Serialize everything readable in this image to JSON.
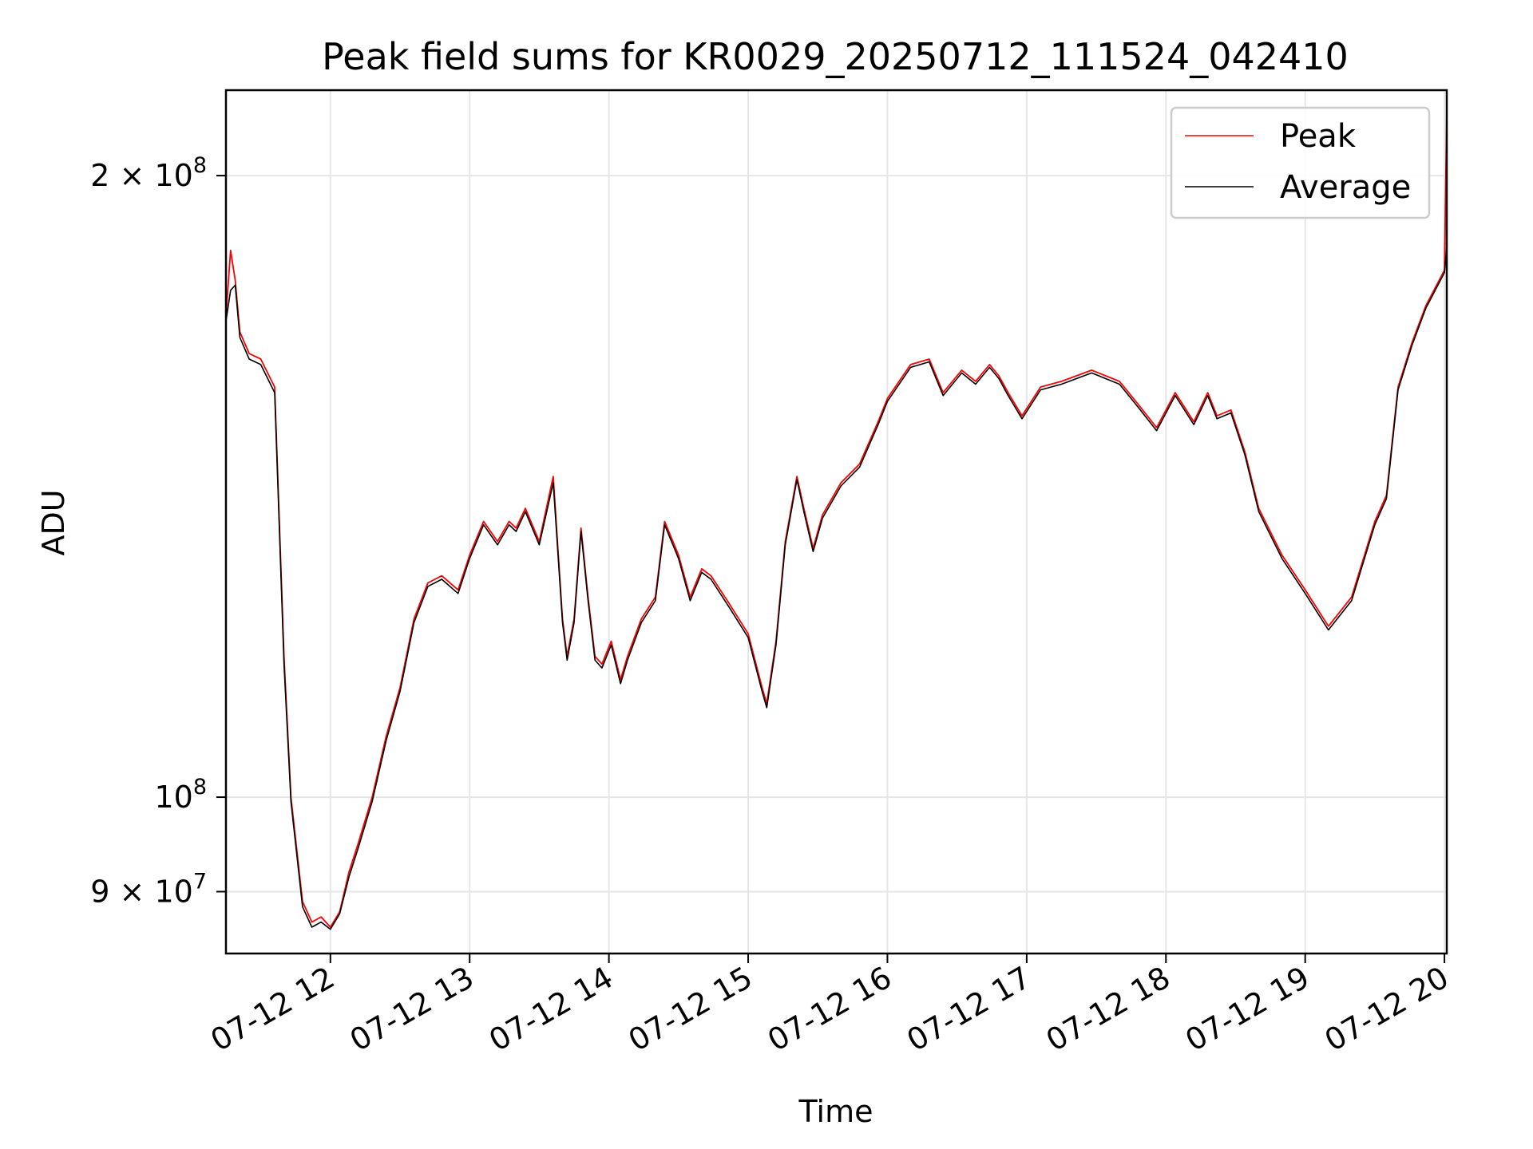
{
  "chart_data": {
    "type": "line",
    "title": "Peak field sums for KR0029_20250712_111524_042410",
    "xlabel": "Time",
    "ylabel": "ADU",
    "y_scale": "log",
    "ylim": [
      84000000,
      220000000
    ],
    "xlim": [
      "07-12 11:15",
      "07-12 20:01"
    ],
    "grid": true,
    "legend_position": "top-right",
    "x_ticks": [
      {
        "value": "07-12 12:00",
        "label": "07-12 12"
      },
      {
        "value": "07-12 13:00",
        "label": "07-12 13"
      },
      {
        "value": "07-12 14:00",
        "label": "07-12 14"
      },
      {
        "value": "07-12 15:00",
        "label": "07-12 15"
      },
      {
        "value": "07-12 16:00",
        "label": "07-12 16"
      },
      {
        "value": "07-12 17:00",
        "label": "07-12 17"
      },
      {
        "value": "07-12 18:00",
        "label": "07-12 18"
      },
      {
        "value": "07-12 19:00",
        "label": "07-12 19"
      },
      {
        "value": "07-12 20:00",
        "label": "07-12 20"
      }
    ],
    "y_ticks": [
      {
        "value": 90000000,
        "label_base": "9 × 10",
        "label_exp": "7"
      },
      {
        "value": 100000000,
        "label_base": "10",
        "label_exp": "8"
      },
      {
        "value": 200000000,
        "label_base": "2 × 10",
        "label_exp": "8"
      }
    ],
    "x_dates": [
      "07-12 11:15",
      "07-12 11:17",
      "07-12 11:19",
      "07-12 11:21",
      "07-12 11:25",
      "07-12 11:30",
      "07-12 11:36",
      "07-12 11:40",
      "07-12 11:43",
      "07-12 11:48",
      "07-12 11:52",
      "07-12 11:56",
      "07-12 12:00",
      "07-12 12:04",
      "07-12 12:08",
      "07-12 12:12",
      "07-12 12:18",
      "07-12 12:24",
      "07-12 12:30",
      "07-12 12:36",
      "07-12 12:42",
      "07-12 12:48",
      "07-12 12:55",
      "07-12 13:00",
      "07-12 13:06",
      "07-12 13:12",
      "07-12 13:17",
      "07-12 13:20",
      "07-12 13:24",
      "07-12 13:30",
      "07-12 13:36",
      "07-12 13:40",
      "07-12 13:42",
      "07-12 13:45",
      "07-12 13:48",
      "07-12 13:51",
      "07-12 13:54",
      "07-12 13:57",
      "07-12 14:01",
      "07-12 14:05",
      "07-12 14:08",
      "07-12 14:14",
      "07-12 14:20",
      "07-12 14:24",
      "07-12 14:30",
      "07-12 14:35",
      "07-12 14:40",
      "07-12 14:44",
      "07-12 14:52",
      "07-12 15:00",
      "07-12 15:06",
      "07-12 15:08",
      "07-12 15:12",
      "07-12 15:16",
      "07-12 15:21",
      "07-12 15:24",
      "07-12 15:28",
      "07-12 15:32",
      "07-12 15:40",
      "07-12 15:48",
      "07-12 15:56",
      "07-12 16:00",
      "07-12 16:10",
      "07-12 16:18",
      "07-12 16:24",
      "07-12 16:32",
      "07-12 16:38",
      "07-12 16:44",
      "07-12 16:48",
      "07-12 16:52",
      "07-12 16:58",
      "07-12 17:06",
      "07-12 17:15",
      "07-12 17:28",
      "07-12 17:40",
      "07-12 17:48",
      "07-12 17:56",
      "07-12 18:04",
      "07-12 18:12",
      "07-12 18:18",
      "07-12 18:22",
      "07-12 18:28",
      "07-12 18:34",
      "07-12 18:40",
      "07-12 18:50",
      "07-12 19:00",
      "07-12 19:10",
      "07-12 19:20",
      "07-12 19:30",
      "07-12 19:35",
      "07-12 19:40",
      "07-12 19:46",
      "07-12 19:52",
      "07-12 20:00",
      "07-12 20:01"
    ],
    "series": [
      {
        "name": "Peak",
        "color": "#ff0000",
        "values": [
          171000000,
          184000000,
          178000000,
          168000000,
          164000000,
          163000000,
          158000000,
          117000000,
          100000000,
          89000000,
          87000000,
          87500000,
          86500000,
          88000000,
          92000000,
          95000000,
          100000000,
          107000000,
          113000000,
          122000000,
          127000000,
          128000000,
          126000000,
          131000000,
          136000000,
          133000000,
          136000000,
          135000000,
          138000000,
          133000000,
          143000000,
          122000000,
          117000000,
          122000000,
          135000000,
          125000000,
          117000000,
          116000000,
          119000000,
          114000000,
          117000000,
          122000000,
          125000000,
          136000000,
          131000000,
          125000000,
          129000000,
          128000000,
          124000000,
          120000000,
          113000000,
          111000000,
          119000000,
          133000000,
          143000000,
          138000000,
          132000000,
          137000000,
          142000000,
          145000000,
          152000000,
          156000000,
          162000000,
          163000000,
          157000000,
          161000000,
          159000000,
          162000000,
          160000000,
          157000000,
          153000000,
          158000000,
          159000000,
          161000000,
          159000000,
          155000000,
          151000000,
          157000000,
          152000000,
          157000000,
          153000000,
          154000000,
          147000000,
          138000000,
          131000000,
          126000000,
          121000000,
          125000000,
          136000000,
          140000000,
          158000000,
          166000000,
          173000000,
          180000000,
          215000000
        ]
      },
      {
        "name": "Average",
        "color": "#000000",
        "values": [
          170000000,
          176000000,
          177000000,
          167000000,
          163000000,
          162000000,
          157000000,
          116000000,
          99500000,
          88500000,
          86500000,
          87000000,
          86300000,
          87800000,
          91500000,
          94500000,
          99500000,
          106500000,
          112500000,
          121500000,
          126500000,
          127500000,
          125500000,
          130500000,
          135500000,
          132500000,
          135500000,
          134500000,
          137500000,
          132500000,
          142000000,
          121500000,
          116500000,
          121500000,
          134500000,
          124500000,
          116500000,
          115500000,
          118500000,
          113500000,
          116500000,
          121500000,
          124500000,
          135500000,
          130500000,
          124500000,
          128500000,
          127500000,
          123500000,
          119500000,
          112500000,
          110500000,
          118500000,
          132500000,
          142500000,
          137500000,
          131500000,
          136500000,
          141500000,
          144500000,
          151500000,
          155500000,
          161500000,
          162500000,
          156500000,
          160500000,
          158500000,
          161500000,
          159500000,
          156500000,
          152500000,
          157500000,
          158500000,
          160500000,
          158500000,
          154500000,
          150500000,
          156500000,
          151500000,
          156500000,
          152500000,
          153500000,
          146500000,
          137500000,
          130500000,
          125500000,
          120500000,
          124500000,
          135500000,
          139500000,
          157500000,
          165500000,
          172500000,
          179500000,
          185000000
        ]
      }
    ]
  }
}
